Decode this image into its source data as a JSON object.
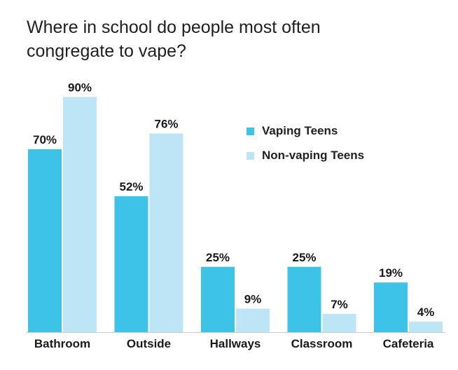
{
  "title": "Where in school do people most often congregate to vape?",
  "colors": {
    "vaping": "#3dc3e8",
    "nonvaping": "#bde5f5",
    "baseline": "#cccccc",
    "text": "#1a1a1a"
  },
  "chart_data": {
    "type": "bar",
    "title": "Where in school do people most often congregate to vape?",
    "xlabel": "",
    "ylabel": "",
    "ylim": [
      0,
      100
    ],
    "grid": false,
    "legend_position": "right",
    "value_suffix": "%",
    "categories": [
      "Bathroom",
      "Outside",
      "Hallways",
      "Classroom",
      "Cafeteria"
    ],
    "series": [
      {
        "name": "Vaping Teens",
        "values": [
          70,
          52,
          25,
          25,
          19
        ]
      },
      {
        "name": "Non-vaping Teens",
        "values": [
          90,
          76,
          9,
          7,
          4
        ]
      }
    ]
  }
}
